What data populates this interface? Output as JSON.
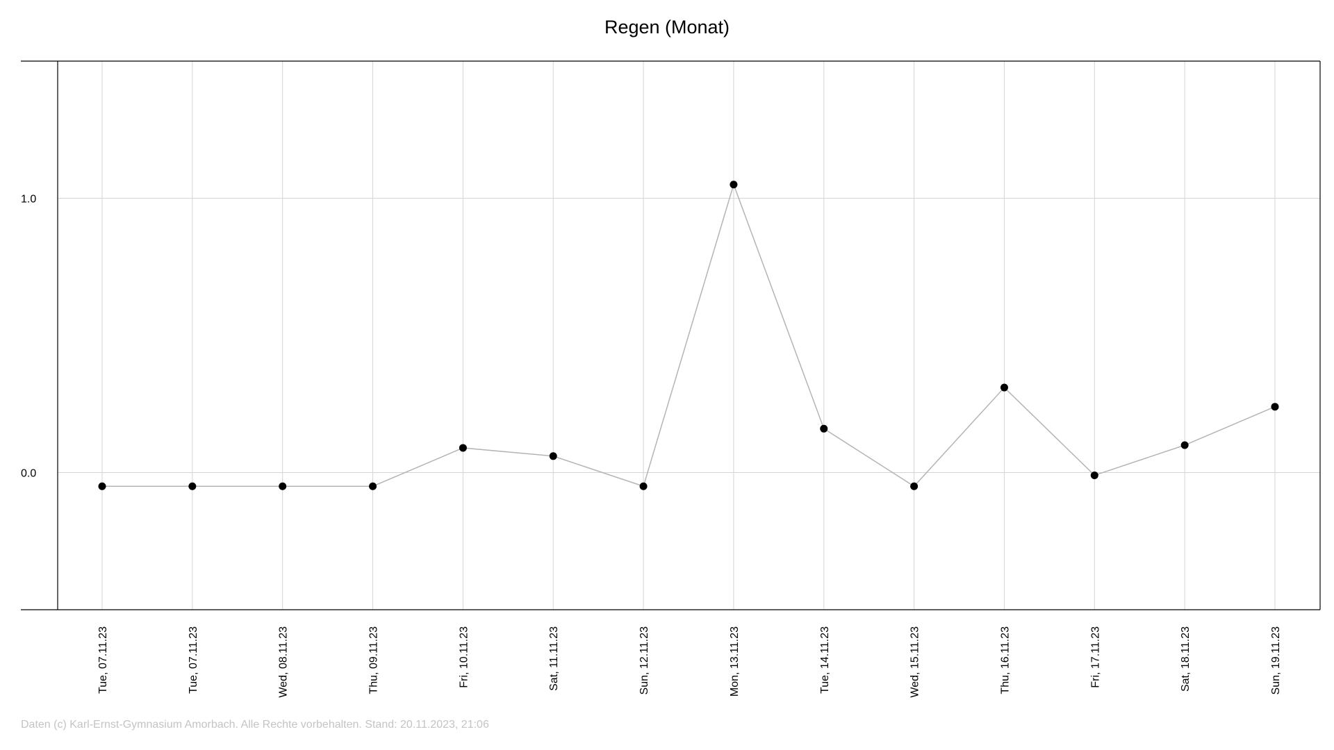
{
  "chart_data": {
    "type": "line",
    "title": "Regen (Monat)",
    "xlabel": "",
    "ylabel": "",
    "categories": [
      "Tue, 07.11.23",
      "Tue, 07.11.23",
      "Wed, 08.11.23",
      "Thu, 09.11.23",
      "Fri, 10.11.23",
      "Sat, 11.11.23",
      "Sun, 12.11.23",
      "Mon, 13.11.23",
      "Tue, 14.11.23",
      "Wed, 15.11.23",
      "Thu, 16.11.23",
      "Fri, 17.11.23",
      "Sat, 18.11.23",
      "Sun, 19.11.23"
    ],
    "series": [
      {
        "values": [
          -0.05,
          -0.05,
          -0.05,
          -0.05,
          0.09,
          0.06,
          -0.05,
          1.05,
          0.16,
          -0.05,
          0.31,
          -0.01,
          0.1,
          0.24
        ]
      }
    ],
    "yticks": [
      "0.0",
      "1.0"
    ],
    "ylim": [
      -0.5,
      1.5
    ],
    "grid": true,
    "legend": "none",
    "line_color": "#b4b4b4",
    "marker_color": "#000000",
    "grid_color": "#d4d4d4"
  },
  "footer": {
    "text": "Daten (c) Karl-Ernst-Gymnasium Amorbach. Alle Rechte vorbehalten. Stand: 20.11.2023, 21:06"
  }
}
